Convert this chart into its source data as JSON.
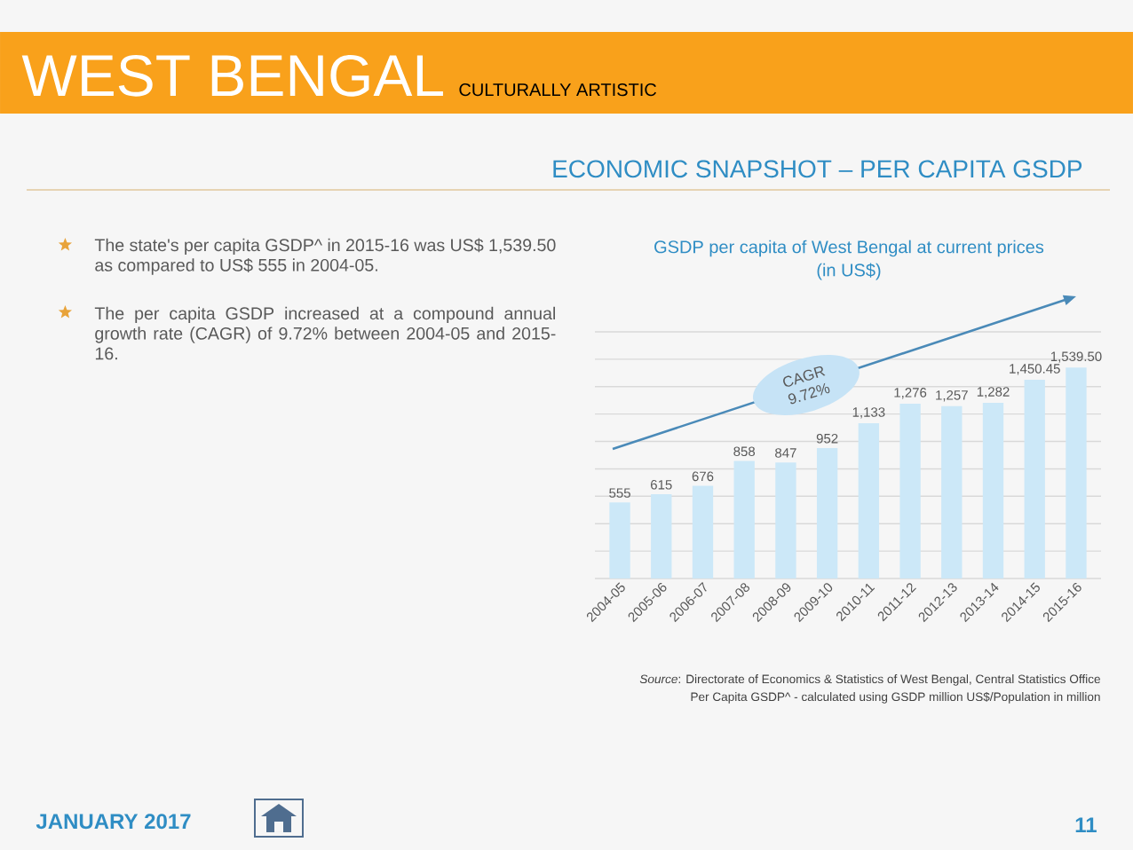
{
  "chart_data": {
    "type": "bar",
    "title": "GSDP per capita of West Bengal at current prices",
    "subtitle": "(in US$)",
    "categories": [
      "2004-05",
      "2005-06",
      "2006-07",
      "2007-08",
      "2008-09",
      "2009-10",
      "2010-11",
      "2011-12",
      "2012-13",
      "2013-14",
      "2014-15",
      "2015-16"
    ],
    "values": [
      555,
      615,
      676,
      858,
      847,
      952,
      1133,
      1276,
      1257,
      1282,
      1450.45,
      1539.5
    ],
    "value_labels": [
      "555",
      "615",
      "676",
      "858",
      "847",
      "952",
      "1,133",
      "1,276",
      "1,257",
      "1,282",
      "1,450.45",
      "1,539.50"
    ],
    "color": "#cce8f8",
    "ylim": [
      0,
      1800
    ],
    "yticks": [
      {
        "value": 0,
        "label": null
      },
      {
        "value": 200,
        "label": null
      },
      {
        "value": 400,
        "label": null
      },
      {
        "value": 600,
        "label": null
      },
      {
        "value": 800,
        "label": null
      },
      {
        "value": 1000,
        "label": null
      },
      {
        "value": 1200,
        "label": null
      },
      {
        "value": 1400,
        "label": null
      },
      {
        "value": 1600,
        "label": null
      },
      {
        "value": 1800,
        "label": null
      }
    ],
    "grid": "y",
    "tick_labels": "x",
    "annotations": [
      "WEST BENGAL",
      "CULTURALLY ARTISTIC",
      "ECONOMIC SNAPSHOT – PER CAPITA GSDP",
      "The state's per capita GSDP^ in 2015-16 was US$ 1,539.50 as compared to US$ 555 in 2004-05.",
      "The per capita GSDP increased at a compound annual growth rate (CAGR) of 9.72% between 2004-05 and 2015-16.",
      "CAGR 9.72%",
      "*Source*: Directorate of Economics & Statistics of West Bengal, Central Statistics Office",
      "Per Capita GSDP^ - calculated using GSDP million US$/Population in million",
      "JANUARY 2017",
      "11"
    ]
  }
}
